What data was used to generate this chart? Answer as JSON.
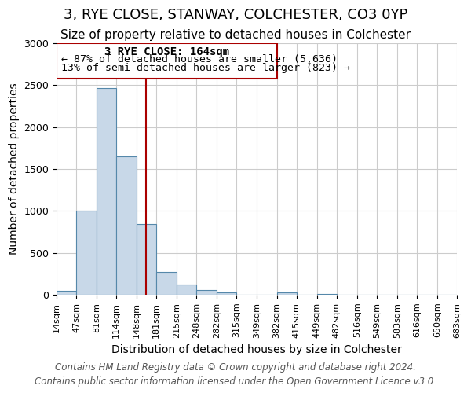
{
  "title": "3, RYE CLOSE, STANWAY, COLCHESTER, CO3 0YP",
  "subtitle": "Size of property relative to detached houses in Colchester",
  "xlabel": "Distribution of detached houses by size in Colchester",
  "ylabel": "Number of detached properties",
  "footer_line1": "Contains HM Land Registry data © Crown copyright and database right 2024.",
  "footer_line2": "Contains public sector information licensed under the Open Government Licence v3.0.",
  "annotation_title": "3 RYE CLOSE: 164sqm",
  "annotation_line2": "← 87% of detached houses are smaller (5,636)",
  "annotation_line3": "13% of semi-detached houses are larger (823) →",
  "property_line_x": 164,
  "bar_edges": [
    14,
    47,
    81,
    114,
    148,
    181,
    215,
    248,
    282,
    315,
    349,
    382,
    415,
    449,
    482,
    516,
    549,
    583,
    616,
    650,
    683
  ],
  "bar_heights": [
    50,
    1000,
    2470,
    1650,
    840,
    270,
    120,
    55,
    30,
    0,
    0,
    30,
    0,
    10,
    0,
    0,
    0,
    0,
    0,
    0
  ],
  "bar_color": "#c8d8e8",
  "bar_edge_color": "#5588aa",
  "line_color": "#aa0000",
  "box_edge_color": "#aa0000",
  "grid_color": "#cccccc",
  "background_color": "#ffffff",
  "ylim": [
    0,
    3000
  ],
  "yticks": [
    0,
    500,
    1000,
    1500,
    2000,
    2500,
    3000
  ],
  "title_fontsize": 13,
  "subtitle_fontsize": 11,
  "label_fontsize": 10,
  "tick_fontsize": 9,
  "annotation_fontsize": 10,
  "footer_fontsize": 8.5
}
